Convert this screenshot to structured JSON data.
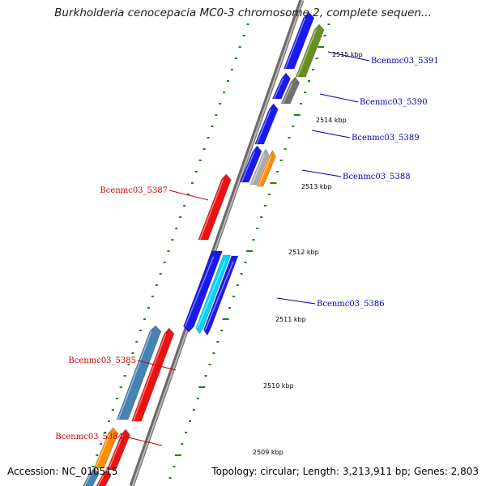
{
  "title": "Burkholderia cenocepacia MC0-3 chromosome 2, complete sequen...",
  "footer": {
    "accession": "Accession: NC_010515",
    "stats": "Topology: circular; Length: 3,213,911 bp; Genes: 2,803"
  },
  "colors": {
    "forward_label": "#0000bb",
    "reverse_label": "#cc0000",
    "tick": "#118811",
    "backbone": "#888888"
  },
  "scale_labels": [
    "2515 kbp",
    "2514 kbp",
    "2513 kbp",
    "2512 kbp",
    "2511 kbp",
    "2510 kbp",
    "2509 kbp"
  ],
  "gene_labels": [
    {
      "name": "Bcenmc03_5391",
      "strand": "forward"
    },
    {
      "name": "Bcenmc03_5390",
      "strand": "forward"
    },
    {
      "name": "Bcenmc03_5389",
      "strand": "forward"
    },
    {
      "name": "Bcenmc03_5388",
      "strand": "forward"
    },
    {
      "name": "Bcenmc03_5387",
      "strand": "reverse"
    },
    {
      "name": "Bcenmc03_5386",
      "strand": "forward"
    },
    {
      "name": "Bcenmc03_5385",
      "strand": "reverse"
    },
    {
      "name": "Bcenmc03_5384",
      "strand": "reverse"
    }
  ]
}
